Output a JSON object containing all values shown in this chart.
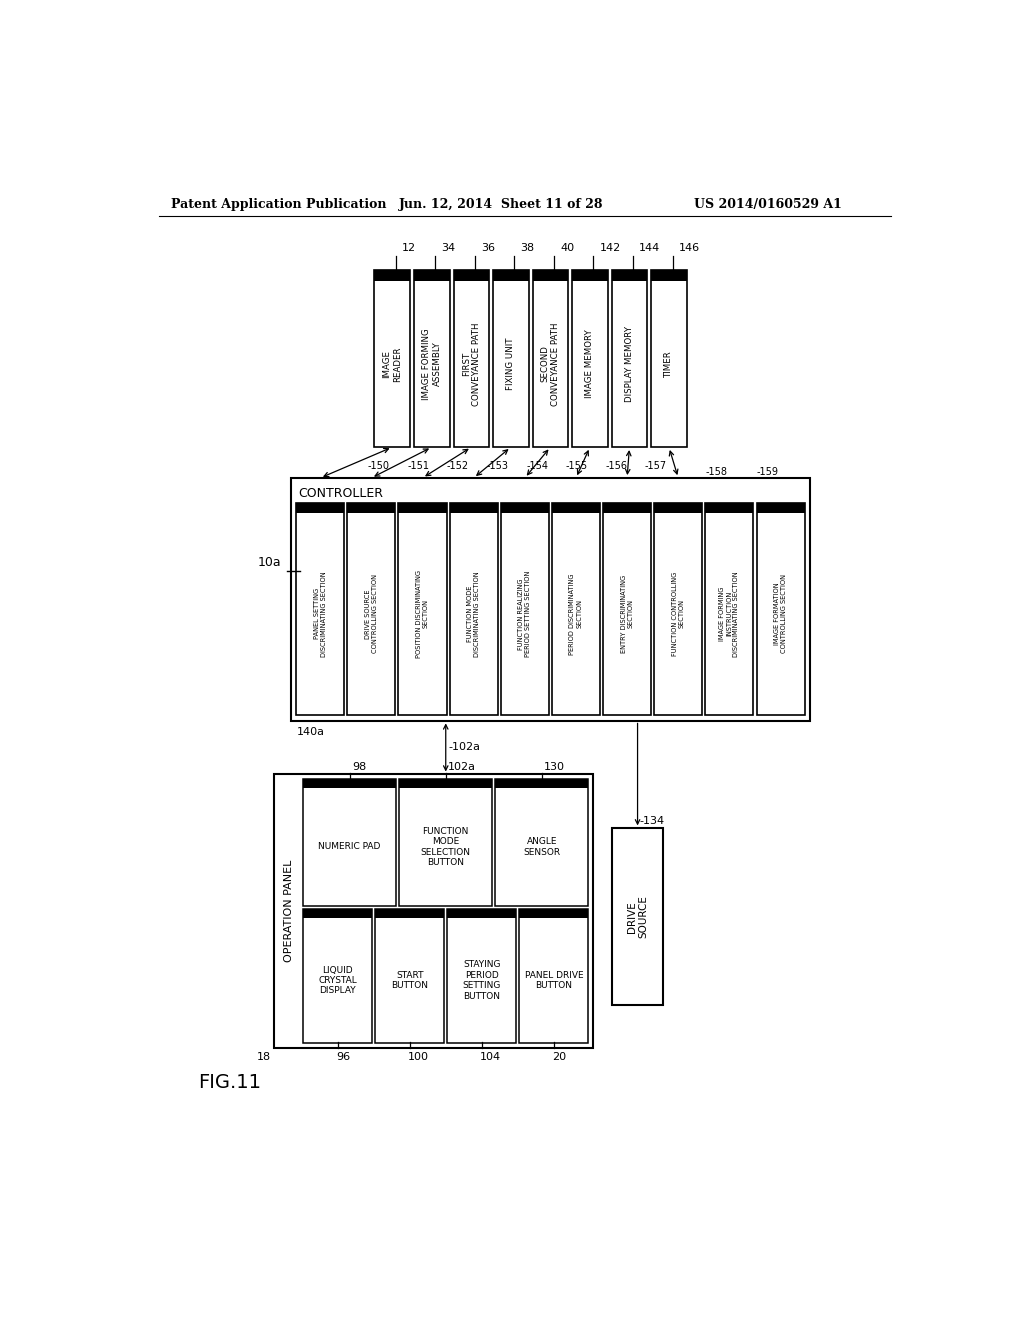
{
  "title": "FIG.11",
  "header_left": "Patent Application Publication",
  "header_center": "Jun. 12, 2014  Sheet 11 of 28",
  "header_right": "US 2014/0160529 A1",
  "bg_color": "#ffffff",
  "top_boxes": [
    {
      "label": "IMAGE\nREADER",
      "ref": "12"
    },
    {
      "label": "IMAGE FORMING\nASSEMBLY",
      "ref": "34"
    },
    {
      "label": "FIRST\nCONVEYANCE PATH",
      "ref": "36"
    },
    {
      "label": "FIXING UNIT",
      "ref": "38"
    },
    {
      "label": "SECOND\nCONVEYANCE PATH",
      "ref": "40"
    },
    {
      "label": "IMAGE MEMORY",
      "ref": "142"
    },
    {
      "label": "DISPLAY MEMORY",
      "ref": "144"
    },
    {
      "label": "TIMER",
      "ref": "146"
    }
  ],
  "controller_sections": [
    {
      "label": "PANEL SETTING\nDISCRIMINATING SECTION",
      "ref": "150"
    },
    {
      "label": "DRIVE SOURCE\nCONTROLLING SECTION",
      "ref": "151"
    },
    {
      "label": "POSITION DISCRIMINATING\nSECTION",
      "ref": "152"
    },
    {
      "label": "FUNCTION MODE\nDISCRIMINATING SECTION",
      "ref": "153"
    },
    {
      "label": "FUNCTION REALIZING\nPERIOD SETTING SECTION",
      "ref": "154"
    },
    {
      "label": "PERIOD DISCRIMINATING\nSECTION",
      "ref": "155"
    },
    {
      "label": "ENTRY DISCRIMINATING\nSECTION",
      "ref": "156"
    },
    {
      "label": "FUNCTION CONTROLLING\nSECTION",
      "ref": "157"
    },
    {
      "label": "IMAGE FORMING\nINSTRUCTION\nDISCRIMINATING SECTION",
      "ref": "158"
    },
    {
      "label": "IMAGE FORMATION\nCONTROLLING SECTION",
      "ref": "159"
    }
  ],
  "op_panel_label": "OPERATION PANEL",
  "op_panel_ref": "18",
  "op_top_row": [
    {
      "label": "NUMERIC PAD",
      "ref": "98"
    },
    {
      "label": "FUNCTION\nMODE\nSELECTION\nBUTTON",
      "ref": "102a"
    },
    {
      "label": "ANGLE\nSENSOR",
      "ref": "130"
    }
  ],
  "op_bottom_row": [
    {
      "label": "LIQUID\nCRYSTAL\nDISPLAY",
      "ref": "96"
    },
    {
      "label": "START\nBUTTON",
      "ref": "100"
    },
    {
      "label": "STAYING\nPERIOD\nSETTING\nBUTTON",
      "ref": "104"
    },
    {
      "label": "PANEL DRIVE\nBUTTON",
      "ref": "20"
    }
  ],
  "drive_source_label": "DRIVE\nSOURCE",
  "drive_source_ref": "134",
  "controller_label": "CONTROLLER",
  "controller_ref": "140a",
  "controller_system_ref": "10a",
  "arrow_refs_top": [
    "150",
    "151",
    "152",
    "153",
    "154",
    "155",
    "156",
    "157",
    "158",
    "159"
  ],
  "arrow_refs_bottom": [
    "102a",
    "134"
  ]
}
